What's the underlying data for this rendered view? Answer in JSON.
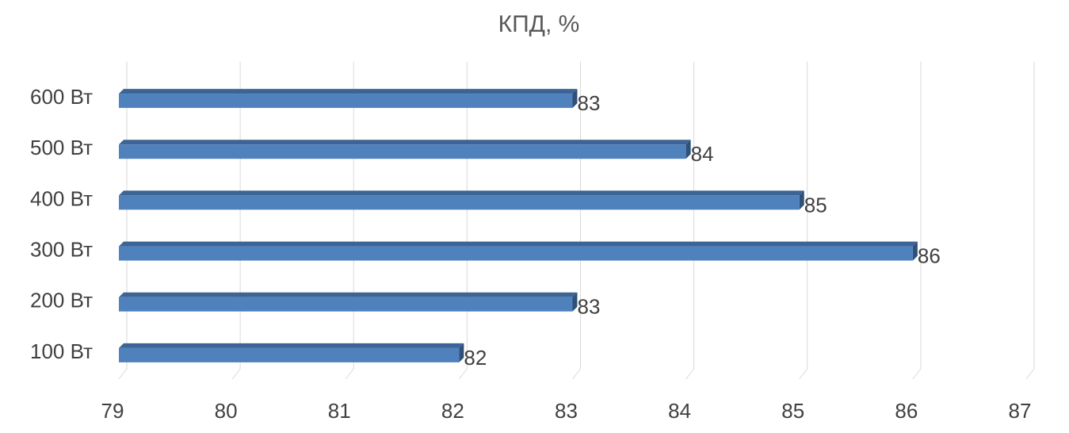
{
  "chart_data": {
    "type": "bar",
    "orientation": "horizontal",
    "title": "КПД, %",
    "categories": [
      "100 Вт",
      "200 Вт",
      "300 Вт",
      "400 Вт",
      "500 Вт",
      "600 Вт"
    ],
    "values": [
      82,
      83,
      86,
      85,
      84,
      83
    ],
    "color": "#4f81bd",
    "xlim": [
      79,
      87
    ],
    "xticks": [
      79,
      80,
      81,
      82,
      83,
      84,
      85,
      86,
      87
    ],
    "grid": true
  }
}
